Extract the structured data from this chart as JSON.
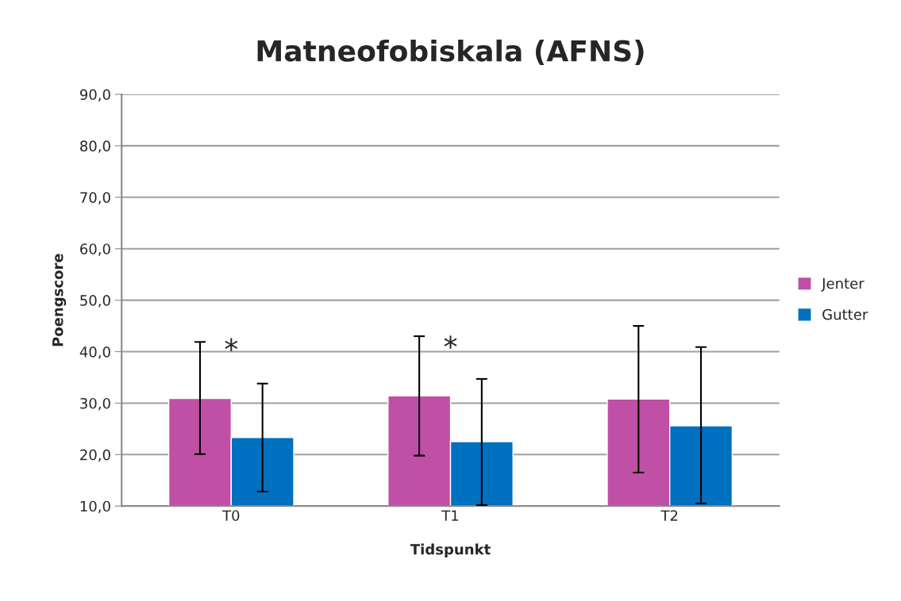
{
  "chart_data": {
    "type": "bar",
    "title": "Matneofobiskala (AFNS)",
    "xlabel": "Tidspunkt",
    "ylabel": "Poengscore",
    "categories": [
      "T0",
      "T1",
      "T2"
    ],
    "series": [
      {
        "name": "Jenter",
        "color": "#c04fa6",
        "values": [
          30.9,
          31.4,
          30.8
        ],
        "errors": [
          [
            20.1,
            41.9
          ],
          [
            19.8,
            43.0
          ],
          [
            16.5,
            45.0
          ]
        ]
      },
      {
        "name": "Gutter",
        "color": "#0070c0",
        "values": [
          23.3,
          22.5,
          25.6
        ],
        "errors": [
          [
            12.8,
            33.8
          ],
          [
            10.2,
            34.7
          ],
          [
            10.5,
            40.9
          ]
        ]
      }
    ],
    "ylim": [
      10,
      90
    ],
    "yticks": [
      {
        "value": 10,
        "label": "10,0"
      },
      {
        "value": 20,
        "label": "20,0"
      },
      {
        "value": 30,
        "label": "30,0"
      },
      {
        "value": 40,
        "label": "40,0"
      },
      {
        "value": 50,
        "label": "50,0"
      },
      {
        "value": 60,
        "label": "60,0"
      },
      {
        "value": 70,
        "label": "70,0"
      },
      {
        "value": 80,
        "label": "80,0"
      },
      {
        "value": 90,
        "label": "90,0"
      }
    ],
    "annotations": [
      "*",
      "*"
    ],
    "grid": "y",
    "legend": "right"
  }
}
